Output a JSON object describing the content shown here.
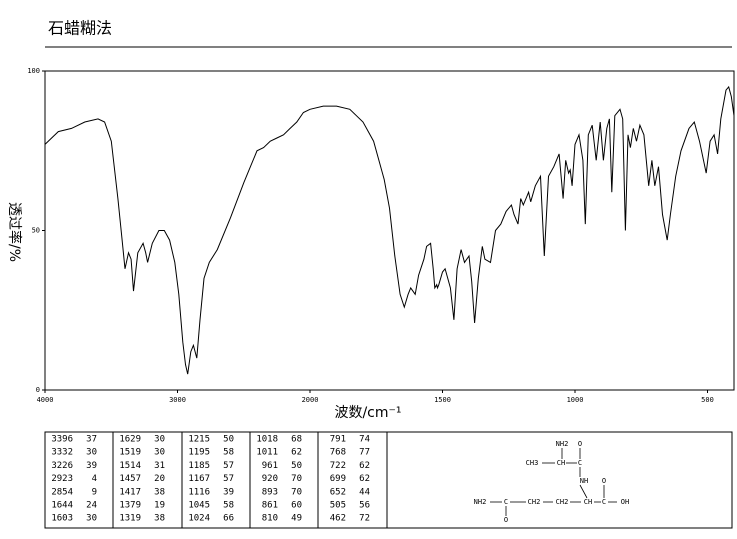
{
  "chart_data": {
    "type": "line",
    "title": "石蜡糊法",
    "x_label": "波数/cm⁻¹",
    "y_label": "透过率/%",
    "xlim": [
      4000,
      400
    ],
    "xticks": [
      4000,
      3000,
      2000,
      1500,
      1000,
      500
    ],
    "ylim": [
      0,
      100
    ],
    "yticks": [
      0,
      50,
      100
    ],
    "color": "#000000",
    "x": [
      4000,
      3900,
      3800,
      3700,
      3600,
      3550,
      3500,
      3450,
      3420,
      3396,
      3370,
      3350,
      3332,
      3300,
      3260,
      3240,
      3226,
      3190,
      3140,
      3100,
      3060,
      3020,
      2990,
      2960,
      2940,
      2923,
      2900,
      2880,
      2854,
      2830,
      2800,
      2760,
      2700,
      2600,
      2500,
      2450,
      2400,
      2350,
      2300,
      2250,
      2200,
      2150,
      2100,
      2050,
      2000,
      1950,
      1900,
      1850,
      1800,
      1760,
      1720,
      1700,
      1680,
      1660,
      1644,
      1630,
      1620,
      1603,
      1590,
      1570,
      1560,
      1545,
      1535,
      1529,
      1522,
      1519,
      1514,
      1500,
      1490,
      1470,
      1457,
      1445,
      1430,
      1417,
      1400,
      1390,
      1379,
      1365,
      1350,
      1340,
      1319,
      1300,
      1280,
      1260,
      1240,
      1230,
      1215,
      1205,
      1195,
      1185,
      1175,
      1167,
      1150,
      1130,
      1116,
      1100,
      1080,
      1060,
      1045,
      1035,
      1024,
      1018,
      1011,
      1000,
      985,
      970,
      961,
      950,
      935,
      920,
      905,
      893,
      880,
      870,
      861,
      850,
      830,
      820,
      810,
      800,
      791,
      780,
      768,
      755,
      740,
      722,
      710,
      699,
      685,
      670,
      652,
      640,
      620,
      600,
      570,
      550,
      530,
      505,
      490,
      475,
      462,
      450,
      430,
      420,
      410,
      400
    ],
    "values": [
      77,
      81,
      82,
      84,
      85,
      84,
      78,
      60,
      48,
      38,
      43,
      41,
      31,
      43,
      46,
      43,
      40,
      46,
      50,
      50,
      47,
      40,
      30,
      15,
      8,
      5,
      12,
      14,
      10,
      22,
      35,
      40,
      44,
      54,
      65,
      70,
      75,
      76,
      78,
      79,
      80,
      82,
      84,
      87,
      88,
      89,
      89,
      88,
      84,
      78,
      66,
      57,
      42,
      30,
      26,
      30,
      32,
      30,
      36,
      41,
      45,
      46,
      38,
      32,
      33,
      32,
      33,
      37,
      38,
      32,
      22,
      38,
      44,
      40,
      42,
      34,
      21,
      35,
      45,
      41,
      40,
      50,
      52,
      56,
      58,
      55,
      52,
      60,
      58,
      60,
      62,
      59,
      64,
      67,
      42,
      67,
      70,
      74,
      60,
      72,
      68,
      69,
      64,
      77,
      80,
      72,
      52,
      80,
      83,
      72,
      84,
      72,
      82,
      85,
      62,
      86,
      88,
      85,
      50,
      80,
      76,
      82,
      78,
      83,
      80,
      64,
      72,
      64,
      70,
      55,
      47,
      55,
      67,
      75,
      82,
      84,
      78,
      68,
      78,
      80,
      74,
      85,
      94,
      95,
      92,
      86
    ]
  },
  "peak_table": {
    "rows": [
      [
        3396,
        37,
        1629,
        30,
        1215,
        50,
        1018,
        68,
        791,
        74
      ],
      [
        3332,
        30,
        1519,
        30,
        1195,
        58,
        1011,
        62,
        768,
        77
      ],
      [
        3226,
        39,
        1514,
        31,
        1185,
        57,
        961,
        50,
        722,
        62
      ],
      [
        2923,
        4,
        1457,
        20,
        1167,
        57,
        920,
        70,
        699,
        62
      ],
      [
        2854,
        9,
        1417,
        38,
        1116,
        39,
        893,
        70,
        652,
        44
      ],
      [
        1644,
        24,
        1379,
        19,
        1045,
        58,
        861,
        60,
        505,
        56
      ],
      [
        1603,
        30,
        1319,
        38,
        1024,
        66,
        810,
        49,
        462,
        72
      ]
    ]
  },
  "structure": {
    "labels": [
      "NH2",
      "O",
      "CH3",
      "CH",
      "C",
      "NH",
      "O",
      "NH2",
      "C",
      "CH2",
      "CH2",
      "CH",
      "C",
      "OH",
      "O"
    ]
  }
}
